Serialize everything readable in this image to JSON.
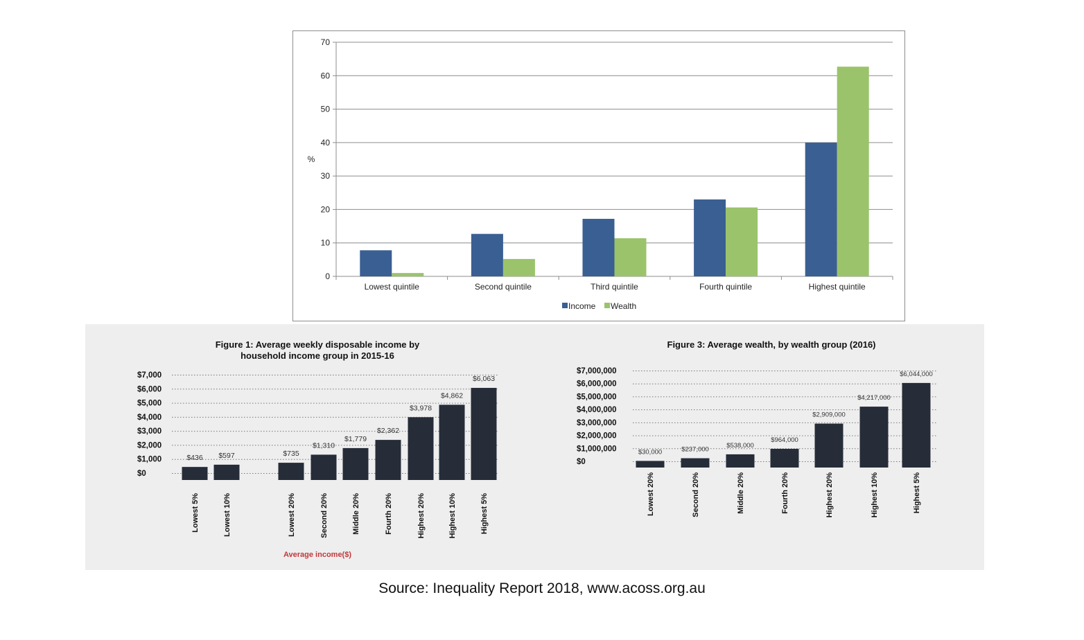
{
  "source_text": "Source: Inequality Report 2018, www.acoss.org.au",
  "chart_data": [
    {
      "type": "bar",
      "title": "",
      "xlabel": "",
      "ylabel": "%",
      "ylim": [
        0,
        70
      ],
      "yticks": [
        "0",
        "10",
        "20",
        "30",
        "40",
        "50",
        "60",
        "70"
      ],
      "categories": [
        "Lowest quintile",
        "Second quintile",
        "Third quintile",
        "Fourth quintile",
        "Highest quintile"
      ],
      "series": [
        {
          "name": "Income",
          "color": "#3a5f92",
          "values": [
            7.8,
            12.7,
            17.2,
            23.0,
            40.0
          ]
        },
        {
          "name": "Wealth",
          "color": "#9bc36b",
          "values": [
            1.0,
            5.2,
            11.4,
            20.6,
            62.7
          ]
        }
      ],
      "legend_position": "bottom-center",
      "grid": true
    },
    {
      "type": "bar",
      "title": "Figure 1: Average weekly disposable income by household income group in 2015-16",
      "title_lines": [
        "Figure 1: Average weekly disposable income by",
        "household income group in 2015-16"
      ],
      "xlabel": "Average income($)",
      "ylabel": "",
      "ylim": [
        0,
        7000
      ],
      "yticks": [
        "$7,000",
        "$6,000",
        "$5,000",
        "$4,000",
        "$3,000",
        "$2,000",
        "$1,000",
        "$0"
      ],
      "categories": [
        "Lowest 5%",
        "Lowest 10%",
        "Lowest 20%",
        "Second 20%",
        "Middle 20%",
        "Fourth 20%",
        "Highest  20%",
        "Highest 10%",
        "Highest 5%"
      ],
      "values": [
        436,
        597,
        735,
        1310,
        1779,
        2362,
        3978,
        4862,
        6063
      ],
      "value_labels": [
        "$436",
        "$597",
        "$735",
        "$1,310",
        "$1,779",
        "$2,362",
        "$3,978",
        "$4,862",
        "$6,063"
      ],
      "bar_color": "#262d39",
      "grid": true
    },
    {
      "type": "bar",
      "title": "Figure 3: Average wealth, by wealth group (2016)",
      "xlabel": "",
      "ylabel": "",
      "ylim": [
        0,
        7000000
      ],
      "yticks": [
        "$7,000,000",
        "$6,000,000",
        "$5,000,000",
        "$4,000,000",
        "$3,000,000",
        "$2,000,000",
        "$1,000,000",
        "$0"
      ],
      "categories": [
        "Lowest 20%",
        "Second 20%",
        "Middle 20%",
        "Fourth 20%",
        "Highest 20%",
        "Highest 10%",
        "Highest 5%"
      ],
      "values": [
        30000,
        237000,
        538000,
        964000,
        2909000,
        4217000,
        6044000
      ],
      "value_labels": [
        "$30,000",
        "$237,000",
        "$538,000",
        "$964,000",
        "$2,909,000",
        "$4,217,000",
        "$6,044,000"
      ],
      "bar_color": "#262d39",
      "grid": true
    }
  ]
}
